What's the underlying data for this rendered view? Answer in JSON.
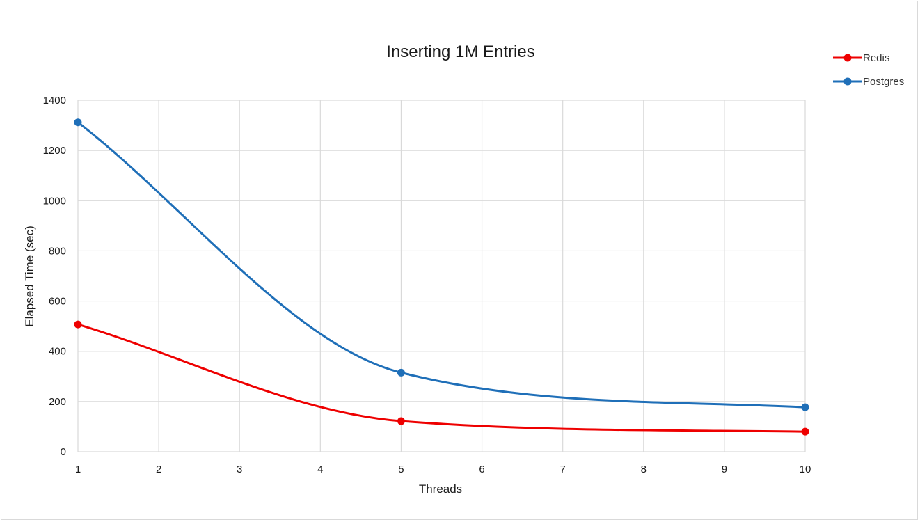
{
  "chart_data": {
    "type": "line",
    "title": "Inserting 1M Entries",
    "xlabel": "Threads",
    "ylabel": "Elapsed Time (sec)",
    "x": [
      1,
      2,
      3,
      4,
      5,
      6,
      7,
      8,
      9,
      10
    ],
    "xlim": [
      1,
      10
    ],
    "ylim": [
      0,
      1400
    ],
    "yticks": [
      0,
      200,
      400,
      600,
      800,
      1000,
      1200,
      1400
    ],
    "grid": true,
    "legend_position": "top-right",
    "smooth": true,
    "series": [
      {
        "name": "Redis",
        "color": "#ee0000",
        "x": [
          1,
          5,
          10
        ],
        "values": [
          507,
          122,
          80
        ]
      },
      {
        "name": "Postgres",
        "color": "#1f6fb8",
        "x": [
          1,
          5,
          10
        ],
        "values": [
          1312,
          315,
          177
        ]
      }
    ]
  }
}
